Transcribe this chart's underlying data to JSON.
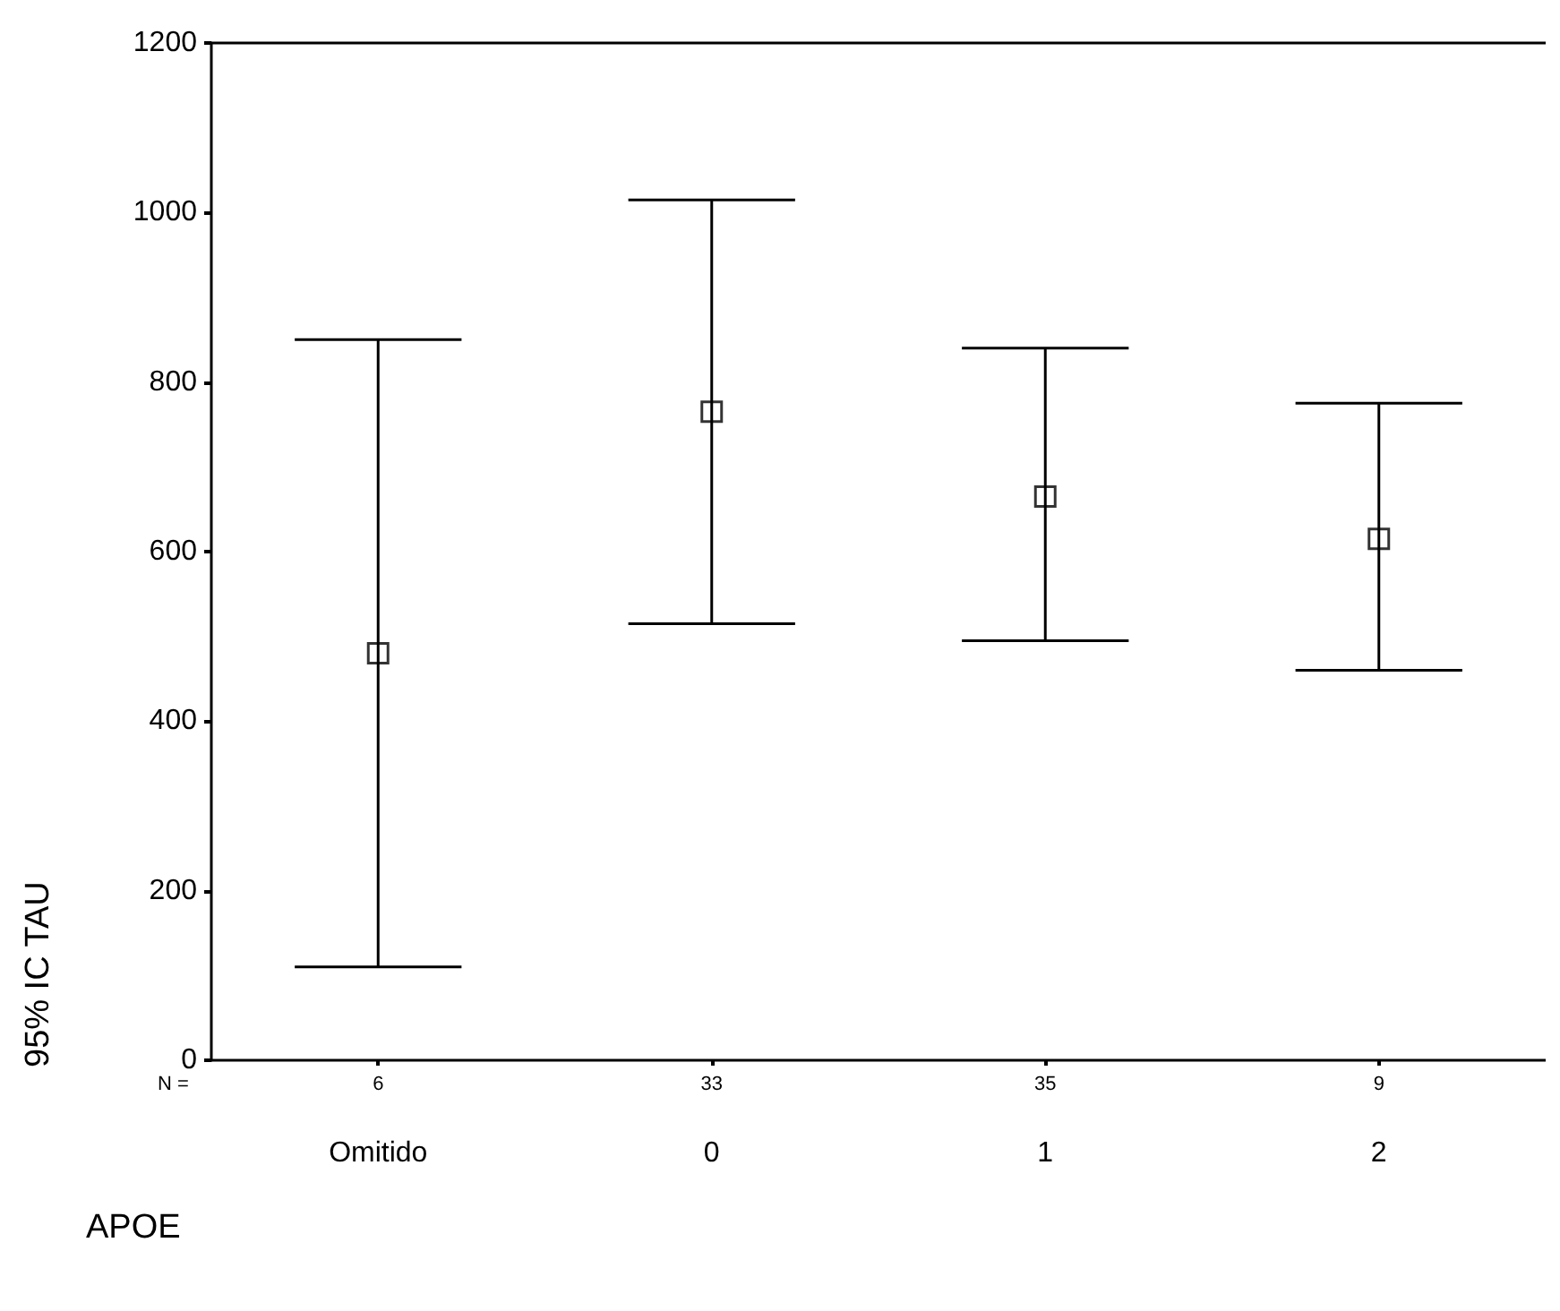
{
  "chart_data": {
    "type": "scatter",
    "xlabel": "APOE",
    "ylabel": "95% IC TAU",
    "categories": [
      "Omitido",
      "0",
      "1",
      "2"
    ],
    "values": [
      480,
      765,
      665,
      615
    ],
    "errors": [
      [
        110,
        850
      ],
      [
        515,
        1015
      ],
      [
        495,
        840
      ],
      [
        460,
        775
      ]
    ],
    "color": "#000000",
    "marker": "square",
    "ylim": [
      0,
      1200
    ],
    "yticks": [
      0,
      200,
      400,
      600,
      800,
      1000,
      1200
    ],
    "grid": false,
    "annotations": [
      "N =",
      {
        "text": "6",
        "x": "Omitido"
      },
      {
        "text": "33",
        "x": "0"
      },
      {
        "text": "35",
        "x": "1"
      },
      {
        "text": "9",
        "x": "2"
      }
    ]
  }
}
